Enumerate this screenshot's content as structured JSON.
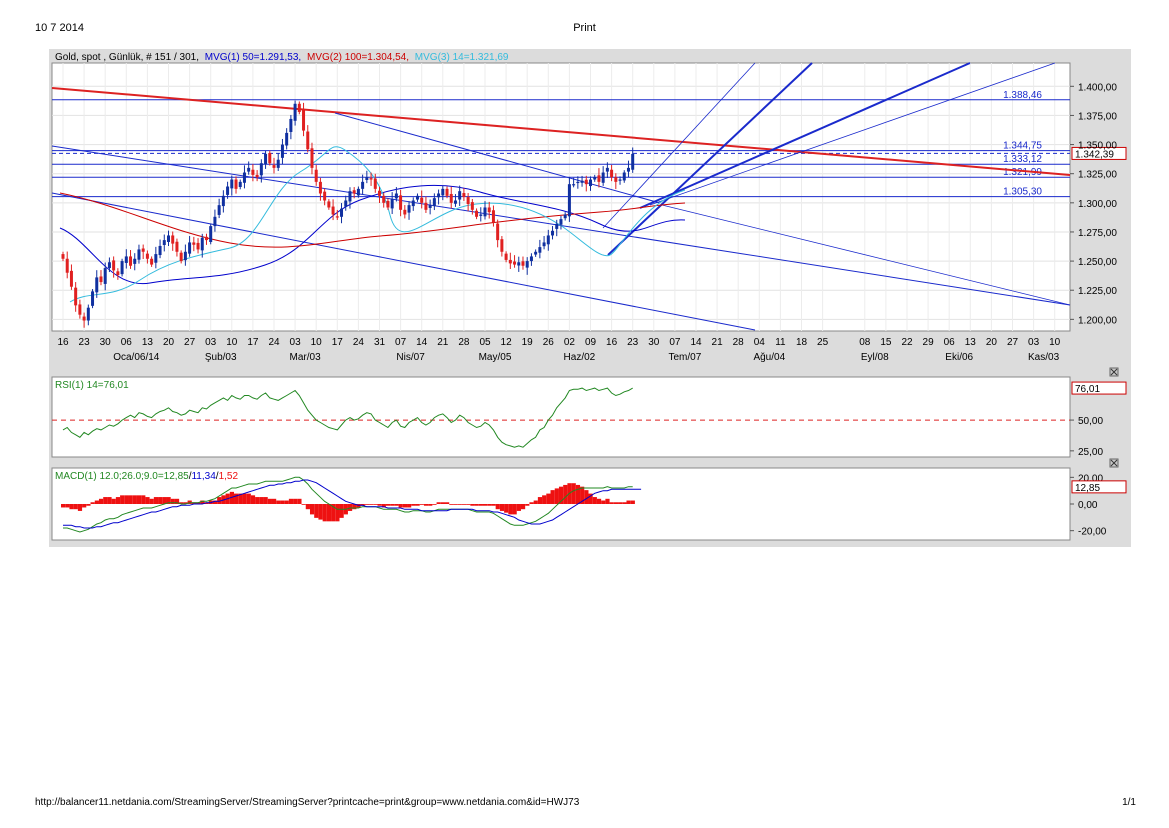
{
  "header": {
    "date": "10 7 2014",
    "title": "Print"
  },
  "footer": {
    "url": "http://balancer11.netdania.com/StreamingServer/StreamingServer?printcache=print&group=www.netdania.com&id=HWJ73",
    "page": "1/1"
  },
  "legend": {
    "instrument": "Gold, spot , Günlük, # 151 / 301,",
    "mvg1": "MVG(1) 50=1.291,53,",
    "mvg2": "MVG(2) 100=1.304,54,",
    "mvg3": "MVG(3) 14=1.321,69"
  },
  "rsi_legend": "RSI(1) 14=76,01",
  "macd_legend": {
    "prefix": "MACD(1) 12.0;26.0;9.0=",
    "v1": "12,85",
    "sep1": "/",
    "v2": "11,34",
    "sep2": "/",
    "v3": "1,52"
  },
  "colors": {
    "mvg50": "#0000cc",
    "mvg100": "#cc0000",
    "mvg14": "#33bbdd",
    "up": "#1030a0",
    "down": "#e02020",
    "rsi": "#228822",
    "macd_hist": "#ee1111"
  },
  "chart_data": [
    {
      "type": "candlestick",
      "title": "Gold, spot , Günlük",
      "ylim": [
        1190,
        1420
      ],
      "y_ticks": [
        "1.200,00",
        "1.225,00",
        "1.250,00",
        "1.275,00",
        "1.300,00",
        "1.325,00",
        "1.350,00",
        "1.375,00",
        "1.400,00"
      ],
      "y_tick_values": [
        1200,
        1225,
        1250,
        1275,
        1300,
        1325,
        1350,
        1375,
        1400
      ],
      "x_ticks": [
        "16",
        "23",
        "30",
        "06",
        "13",
        "20",
        "27",
        "03",
        "10",
        "17",
        "24",
        "03",
        "10",
        "17",
        "24",
        "31",
        "07",
        "14",
        "21",
        "28",
        "05",
        "12",
        "19",
        "26",
        "02",
        "09",
        "16",
        "23",
        "30",
        "07",
        "14",
        "21",
        "28",
        "04",
        "11",
        "18",
        "25",
        "08",
        "15",
        "22",
        "29",
        "06",
        "13",
        "20",
        "27",
        "03",
        "10"
      ],
      "x_tick_bars": [
        0,
        5,
        10,
        15,
        20,
        25,
        30,
        35,
        40,
        45,
        50,
        55,
        60,
        65,
        70,
        75,
        80,
        85,
        90,
        95,
        100,
        105,
        110,
        115,
        120,
        125,
        130,
        135,
        140,
        145,
        150,
        155,
        160,
        165,
        170,
        175,
        180,
        190,
        195,
        200,
        205,
        210,
        215,
        220,
        225,
        230,
        235
      ],
      "month_labels": [
        {
          "label": "Oca/06/14",
          "bar": 15
        },
        {
          "label": "Şub/03",
          "bar": 35
        },
        {
          "label": "Mar/03",
          "bar": 55
        },
        {
          "label": "Nis/07",
          "bar": 80
        },
        {
          "label": "May/05",
          "bar": 100
        },
        {
          "label": "Haz/02",
          "bar": 120
        },
        {
          "label": "Tem/07",
          "bar": 145
        },
        {
          "label": "Ağu/04",
          "bar": 165
        },
        {
          "label": "Eyl/08",
          "bar": 190
        },
        {
          "label": "Eki/06",
          "bar": 210
        },
        {
          "label": "Kas/03",
          "bar": 230
        }
      ],
      "horizontal_levels": [
        {
          "label": "1.388,46",
          "value": 1388.46
        },
        {
          "label": "1.344,75",
          "value": 1344.75
        },
        {
          "label": "1.333,12",
          "value": 1333.12
        },
        {
          "label": "1.321,99",
          "value": 1321.99
        },
        {
          "label": "1.305,30",
          "value": 1305.3
        }
      ],
      "last_price": {
        "label": "1.342,39",
        "value": 1342.39
      },
      "closes": [
        1252,
        1240,
        1228,
        1212,
        1204,
        1199,
        1210,
        1224,
        1236,
        1232,
        1244,
        1249,
        1242,
        1238,
        1250,
        1254,
        1246,
        1252,
        1260,
        1258,
        1252,
        1247,
        1256,
        1263,
        1268,
        1272,
        1265,
        1258,
        1250,
        1258,
        1266,
        1264,
        1260,
        1270,
        1268,
        1280,
        1288,
        1298,
        1306,
        1314,
        1320,
        1312,
        1318,
        1326,
        1330,
        1324,
        1322,
        1334,
        1342,
        1334,
        1330,
        1337,
        1350,
        1360,
        1372,
        1385,
        1378,
        1362,
        1346,
        1330,
        1318,
        1308,
        1302,
        1296,
        1290,
        1288,
        1295,
        1302,
        1310,
        1308,
        1312,
        1318,
        1322,
        1320,
        1312,
        1306,
        1300,
        1296,
        1303,
        1308,
        1294,
        1290,
        1298,
        1302,
        1306,
        1300,
        1294,
        1298,
        1304,
        1308,
        1312,
        1306,
        1300,
        1302,
        1310,
        1305,
        1299,
        1294,
        1288,
        1290,
        1296,
        1292,
        1283,
        1268,
        1258,
        1251,
        1248,
        1247,
        1249,
        1246,
        1250,
        1254,
        1258,
        1262,
        1266,
        1272,
        1276,
        1282,
        1286,
        1290,
        1316,
        1316,
        1318,
        1319,
        1316,
        1320,
        1322,
        1318,
        1326,
        1330,
        1322,
        1318,
        1320,
        1326,
        1330,
        1342
      ],
      "series": [
        {
          "name": "MVG(1) 50",
          "last": 1291.53
        },
        {
          "name": "MVG(2) 100",
          "last": 1304.54
        },
        {
          "name": "MVG(3) 14",
          "last": 1321.69
        }
      ]
    },
    {
      "type": "line",
      "title": "RSI(1) 14",
      "ylim": [
        20,
        85
      ],
      "y_ticks": [
        "25,00",
        "50,00"
      ],
      "y_tick_values": [
        25,
        50
      ],
      "reference_level": 50,
      "last": {
        "label": "76,01",
        "value": 76.01
      },
      "values": [
        42,
        44,
        40,
        38,
        36,
        40,
        38,
        41,
        43,
        42,
        44,
        46,
        45,
        47,
        50,
        52,
        54,
        52,
        56,
        55,
        53,
        52,
        55,
        57,
        58,
        60,
        57,
        56,
        54,
        55,
        58,
        57,
        56,
        60,
        59,
        62,
        64,
        66,
        68,
        66,
        70,
        68,
        67,
        70,
        70,
        68,
        67,
        70,
        72,
        68,
        67,
        66,
        68,
        70,
        72,
        74,
        70,
        64,
        58,
        54,
        50,
        48,
        46,
        44,
        43,
        42,
        46,
        50,
        52,
        50,
        51,
        54,
        56,
        55,
        50,
        48,
        46,
        44,
        48,
        50,
        45,
        44,
        48,
        50,
        52,
        48,
        46,
        48,
        52,
        54,
        55,
        52,
        48,
        50,
        54,
        52,
        48,
        46,
        44,
        45,
        48,
        46,
        42,
        36,
        32,
        30,
        29,
        28,
        29,
        28,
        31,
        34,
        36,
        42,
        44,
        50,
        54,
        60,
        64,
        68,
        74,
        75,
        75,
        76,
        74,
        75,
        76,
        74,
        75,
        76,
        72,
        70,
        71,
        73,
        74,
        76
      ]
    },
    {
      "type": "line",
      "title": "MACD(1) 12.0;26.0;9.0",
      "ylim": [
        -27,
        27
      ],
      "y_ticks": [
        "20,00",
        "0,00",
        "-20,00"
      ],
      "y_tick_values": [
        20,
        0,
        -20
      ],
      "last": {
        "label": "12,85",
        "value": 12.85
      },
      "macd": [
        -18,
        -18,
        -19,
        -20,
        -21,
        -20,
        -19,
        -17,
        -15,
        -14,
        -12,
        -11,
        -11,
        -10,
        -8,
        -7,
        -6,
        -5,
        -4,
        -3,
        -3,
        -3,
        -2,
        -1,
        0,
        1,
        1,
        1,
        0,
        0,
        1,
        1,
        1,
        2,
        2,
        3,
        4,
        6,
        8,
        10,
        12,
        12,
        13,
        14,
        15,
        15,
        15,
        16,
        17,
        17,
        17,
        17,
        17,
        18,
        19,
        20,
        20,
        18,
        15,
        11,
        8,
        5,
        2,
        0,
        -2,
        -4,
        -4,
        -4,
        -3,
        -3,
        -3,
        -2,
        -2,
        -2,
        -2,
        -3,
        -4,
        -4,
        -4,
        -4,
        -5,
        -6,
        -6,
        -5,
        -5,
        -5,
        -6,
        -6,
        -5,
        -4,
        -4,
        -4,
        -4,
        -4,
        -4,
        -4,
        -4,
        -5,
        -6,
        -6,
        -6,
        -6,
        -7,
        -9,
        -11,
        -13,
        -15,
        -16,
        -16,
        -16,
        -15,
        -14,
        -13,
        -11,
        -9,
        -7,
        -4,
        -1,
        2,
        5,
        8,
        10,
        11,
        12,
        12,
        12,
        12,
        12,
        12,
        13,
        12,
        12,
        12,
        12,
        13,
        13
      ],
      "signal": [
        -16,
        -16,
        -16,
        -17,
        -17,
        -18,
        -18,
        -18,
        -17,
        -17,
        -16,
        -15,
        -14,
        -14,
        -13,
        -12,
        -11,
        -10,
        -9,
        -8,
        -7,
        -6,
        -6,
        -5,
        -4,
        -3,
        -2,
        -2,
        -1,
        -1,
        -1,
        0,
        0,
        0,
        1,
        1,
        2,
        2,
        3,
        4,
        5,
        6,
        7,
        8,
        9,
        10,
        11,
        12,
        13,
        14,
        14,
        15,
        15,
        16,
        16,
        17,
        17,
        18,
        18,
        17,
        16,
        14,
        12,
        10,
        8,
        6,
        4,
        2,
        1,
        0,
        -1,
        -1,
        -2,
        -2,
        -2,
        -2,
        -2,
        -3,
        -3,
        -3,
        -3,
        -4,
        -4,
        -4,
        -4,
        -5,
        -5,
        -5,
        -5,
        -5,
        -5,
        -5,
        -4,
        -4,
        -4,
        -4,
        -4,
        -4,
        -5,
        -5,
        -5,
        -5,
        -6,
        -6,
        -7,
        -8,
        -9,
        -10,
        -12,
        -13,
        -14,
        -15,
        -15,
        -15,
        -14,
        -13,
        -12,
        -10,
        -8,
        -6,
        -4,
        -2,
        0,
        2,
        4,
        6,
        8,
        9,
        10,
        10,
        11,
        11,
        11,
        11,
        11,
        11,
        11,
        11
      ]
    }
  ]
}
